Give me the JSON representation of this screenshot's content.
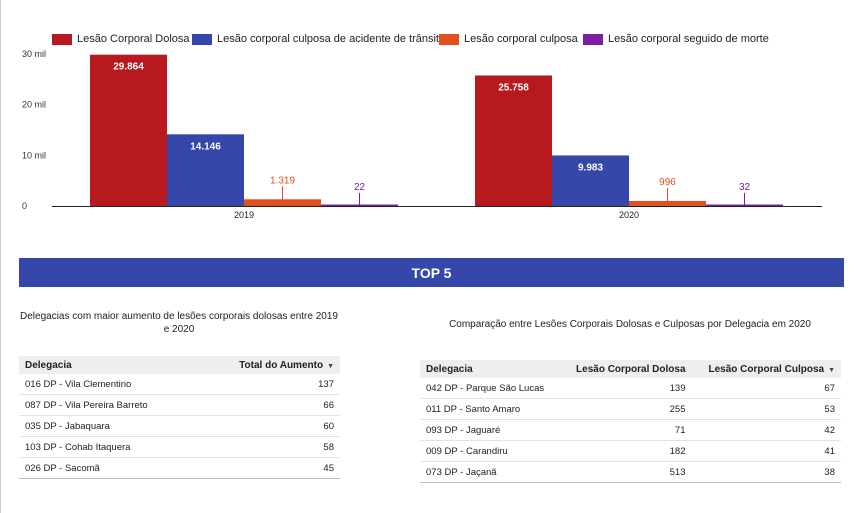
{
  "chart_data": {
    "type": "bar",
    "categories": [
      "2019",
      "2020"
    ],
    "series": [
      {
        "name": "Lesão Corporal Dolosa",
        "color": "#b7191f",
        "values": [
          29864,
          25758
        ],
        "labels": [
          "29.864",
          "25.758"
        ]
      },
      {
        "name": "Lesão corporal culposa de acidente de trânsito",
        "color": "#3548aa",
        "values": [
          14146,
          9983
        ],
        "labels": [
          "14.146",
          "9.983"
        ]
      },
      {
        "name": "Lesão corporal culposa",
        "color": "#e3501f",
        "values": [
          1319,
          996
        ],
        "labels": [
          "1.319",
          "996"
        ]
      },
      {
        "name": "Lesão corporal seguido de morte",
        "color": "#7b1fa2",
        "values": [
          22,
          32
        ],
        "labels": [
          "22",
          "32"
        ]
      }
    ],
    "yticks": [
      0,
      10000,
      20000,
      30000
    ],
    "ytick_labels": [
      "0",
      "10 mil",
      "20 mil",
      "30 mil"
    ],
    "ylim": [
      0,
      30000
    ],
    "legend_position": "top",
    "grid": false
  },
  "banner": {
    "title": "TOP 5"
  },
  "table1": {
    "title": "Delegacias com maior aumento de lesões corporais dolosas entre 2019 e 2020",
    "headers": [
      "Delegacia",
      "Total do Aumento"
    ],
    "rows": [
      [
        "016 DP - Vila Clementino",
        "137"
      ],
      [
        "087 DP - Vila Pereira Barreto",
        "66"
      ],
      [
        "035 DP - Jabaquara",
        "60"
      ],
      [
        "103 DP - Cohab Itaquera",
        "58"
      ],
      [
        "026 DP - Sacomã",
        "45"
      ]
    ]
  },
  "table2": {
    "title": "Comparação entre Lesões Corporais Dolosas e Culposas por Delegacia em 2020",
    "headers": [
      "Delegacia",
      "Lesão Corporal Dolosa",
      "Lesão Corporal Culposa"
    ],
    "rows": [
      [
        "042 DP - Parque São Lucas",
        "139",
        "67"
      ],
      [
        "011 DP - Santo Amaro",
        "255",
        "53"
      ],
      [
        "093 DP - Jaguaré",
        "71",
        "42"
      ],
      [
        "009 DP - Carandiru",
        "182",
        "41"
      ],
      [
        "073 DP - Jaçanã",
        "513",
        "38"
      ]
    ]
  },
  "icons": {
    "sort": "sort-desc-icon"
  }
}
